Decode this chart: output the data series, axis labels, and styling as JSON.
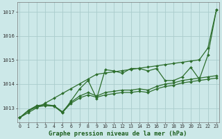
{
  "x": [
    0,
    1,
    2,
    3,
    4,
    5,
    6,
    7,
    8,
    9,
    10,
    11,
    12,
    13,
    14,
    15,
    16,
    17,
    18,
    19,
    20,
    21,
    22,
    23
  ],
  "line_wavy": [
    1012.6,
    1012.9,
    1013.1,
    1013.1,
    1013.1,
    1012.8,
    1013.3,
    1013.8,
    1014.15,
    1013.4,
    1014.6,
    1014.55,
    1014.45,
    1014.65,
    1014.65,
    1014.55,
    1014.65,
    1014.15,
    1014.15,
    1014.3,
    1014.7,
    1014.2,
    1015.2,
    1017.1
  ],
  "line_straight": [
    1012.6,
    1012.81,
    1013.01,
    1013.21,
    1013.41,
    1013.61,
    1013.81,
    1014.01,
    1014.21,
    1014.41,
    1014.46,
    1014.51,
    1014.56,
    1014.61,
    1014.66,
    1014.71,
    1014.76,
    1014.81,
    1014.86,
    1014.91,
    1014.96,
    1015.01,
    1015.5,
    1017.1
  ],
  "line_mid": [
    1012.6,
    1012.9,
    1013.1,
    1013.15,
    1013.1,
    1012.85,
    1013.25,
    1013.5,
    1013.65,
    1013.5,
    1013.65,
    1013.7,
    1013.75,
    1013.75,
    1013.8,
    1013.75,
    1013.9,
    1014.0,
    1014.05,
    1014.15,
    1014.2,
    1014.25,
    1014.3,
    1014.35
  ],
  "line_low": [
    1012.6,
    1012.88,
    1013.05,
    1013.1,
    1013.08,
    1012.82,
    1013.2,
    1013.42,
    1013.55,
    1013.45,
    1013.55,
    1013.6,
    1013.65,
    1013.65,
    1013.7,
    1013.65,
    1013.8,
    1013.9,
    1013.95,
    1014.05,
    1014.1,
    1014.15,
    1014.2,
    1014.25
  ],
  "ylim": [
    1012.4,
    1017.4
  ],
  "ytick_vals": [
    1013,
    1014,
    1015,
    1016,
    1017
  ],
  "ytick_labels": [
    "1013",
    "1014",
    "1015",
    "1016",
    "1017"
  ],
  "xlim": [
    -0.3,
    23.3
  ],
  "bg_color": "#cce8e8",
  "grid_color": "#aacccc",
  "line_color": "#2d6e2d",
  "marker": "D",
  "markersize": 2.0,
  "linewidth": 0.9,
  "xlabel": "Graphe pression niveau de la mer (hPa)",
  "xlabel_color": "#1a5c1a",
  "xlabel_fontsize": 6.2,
  "tick_fontsize": 4.8
}
